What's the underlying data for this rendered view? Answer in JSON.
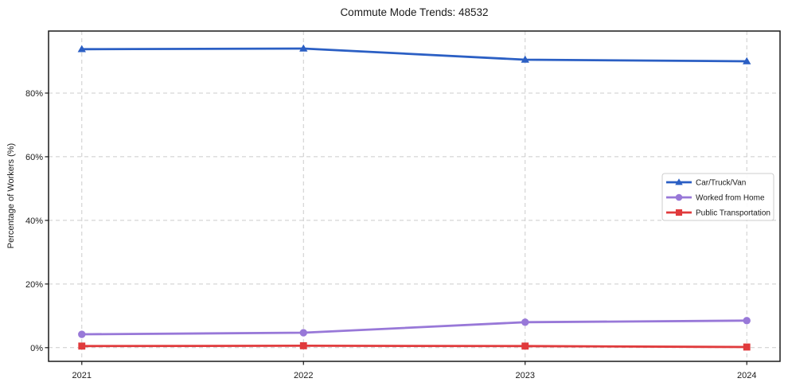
{
  "chart_data": {
    "type": "line",
    "title": "Commute Mode Trends: 48532",
    "xlabel": "",
    "ylabel": "Percentage of Workers (%)",
    "categories": [
      2021,
      2022,
      2023,
      2024
    ],
    "x_tick_labels": [
      "2021",
      "2022",
      "2023",
      "2024"
    ],
    "y_ticks": [
      0,
      20,
      40,
      60,
      80
    ],
    "y_tick_labels": [
      "0%",
      "20%",
      "40%",
      "60%",
      "80%"
    ],
    "xlim": [
      2020.85,
      2024.15
    ],
    "ylim": [
      -4.3,
      99.5
    ],
    "grid": true,
    "grid_style": "dashed",
    "legend_position": "center-right",
    "series": [
      {
        "name": "Car/Truck/Van",
        "marker": "triangle",
        "color": "#2b5fc4",
        "values": [
          93.8,
          94.0,
          90.5,
          90.0
        ]
      },
      {
        "name": "Worked from Home",
        "marker": "circle",
        "color": "#9878d8",
        "values": [
          4.2,
          4.7,
          8.0,
          8.5
        ]
      },
      {
        "name": "Public Transportation",
        "marker": "square",
        "color": "#e03a3c",
        "values": [
          0.5,
          0.6,
          0.5,
          0.2
        ]
      }
    ],
    "colors": {
      "axis": "#1a1a1a",
      "grid": "#cccccc",
      "background": "#ffffff"
    }
  }
}
